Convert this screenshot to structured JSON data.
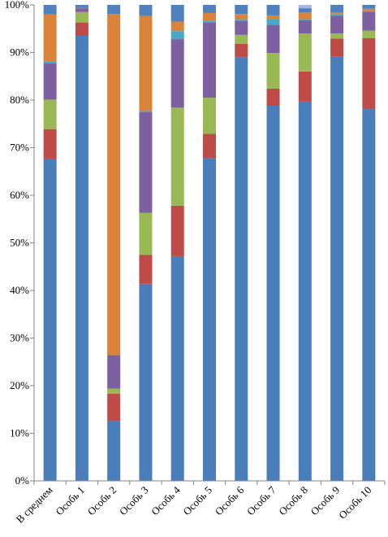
{
  "chart_data": {
    "type": "bar",
    "stacked": true,
    "percent": true,
    "categories": [
      "В среднем",
      "Особь 1",
      "Особь 2",
      "Особь 3",
      "Особь 4",
      "Особь 5",
      "Особь 6",
      "Особь 7",
      "Особь 8",
      "Особь 9",
      "Особь 10"
    ],
    "y_ticks": [
      "0%",
      "10%",
      "20%",
      "30%",
      "40%",
      "50%",
      "60%",
      "70%",
      "80%",
      "90%",
      "100%"
    ],
    "ylim": [
      0,
      100
    ],
    "grid": false,
    "legend": "none",
    "series": [
      {
        "color": "#4a7ebb",
        "values": [
          67.7,
          93.5,
          12.5,
          41.4,
          47.2,
          67.8,
          89.0,
          78.8,
          79.7,
          89.1,
          78.1
        ]
      },
      {
        "color": "#be4b48",
        "values": [
          6.2,
          2.8,
          5.8,
          6.1,
          10.6,
          5.1,
          2.8,
          3.6,
          6.3,
          3.8,
          14.9
        ]
      },
      {
        "color": "#98b954",
        "values": [
          6.2,
          2.2,
          1.1,
          8.8,
          20.6,
          7.6,
          1.9,
          7.5,
          8.0,
          1.1,
          1.6
        ]
      },
      {
        "color": "#7d60a0",
        "values": [
          7.6,
          0.8,
          7.0,
          21.2,
          14.4,
          15.8,
          3.0,
          5.9,
          2.8,
          3.7,
          4.0
        ]
      },
      {
        "color": "#46aac4",
        "values": [
          0.4,
          0,
          0,
          0.2,
          1.7,
          0.3,
          0.2,
          1.2,
          0.2,
          0.4,
          0
        ]
      },
      {
        "color": "#d9833b",
        "values": [
          9.9,
          0.1,
          71.7,
          20.0,
          2.0,
          1.7,
          1.2,
          0.8,
          1.4,
          0.3,
          0.6
        ]
      },
      {
        "color": "#4f81bd",
        "values": [
          2.0,
          0.6,
          1.9,
          2.3,
          3.5,
          1.7,
          1.9,
          2.2,
          0.9,
          1.6,
          0.8
        ]
      },
      {
        "color": "#a6b9db",
        "values": [
          0,
          0,
          0,
          0,
          0,
          0,
          0,
          0,
          0.7,
          0,
          0
        ]
      }
    ]
  }
}
